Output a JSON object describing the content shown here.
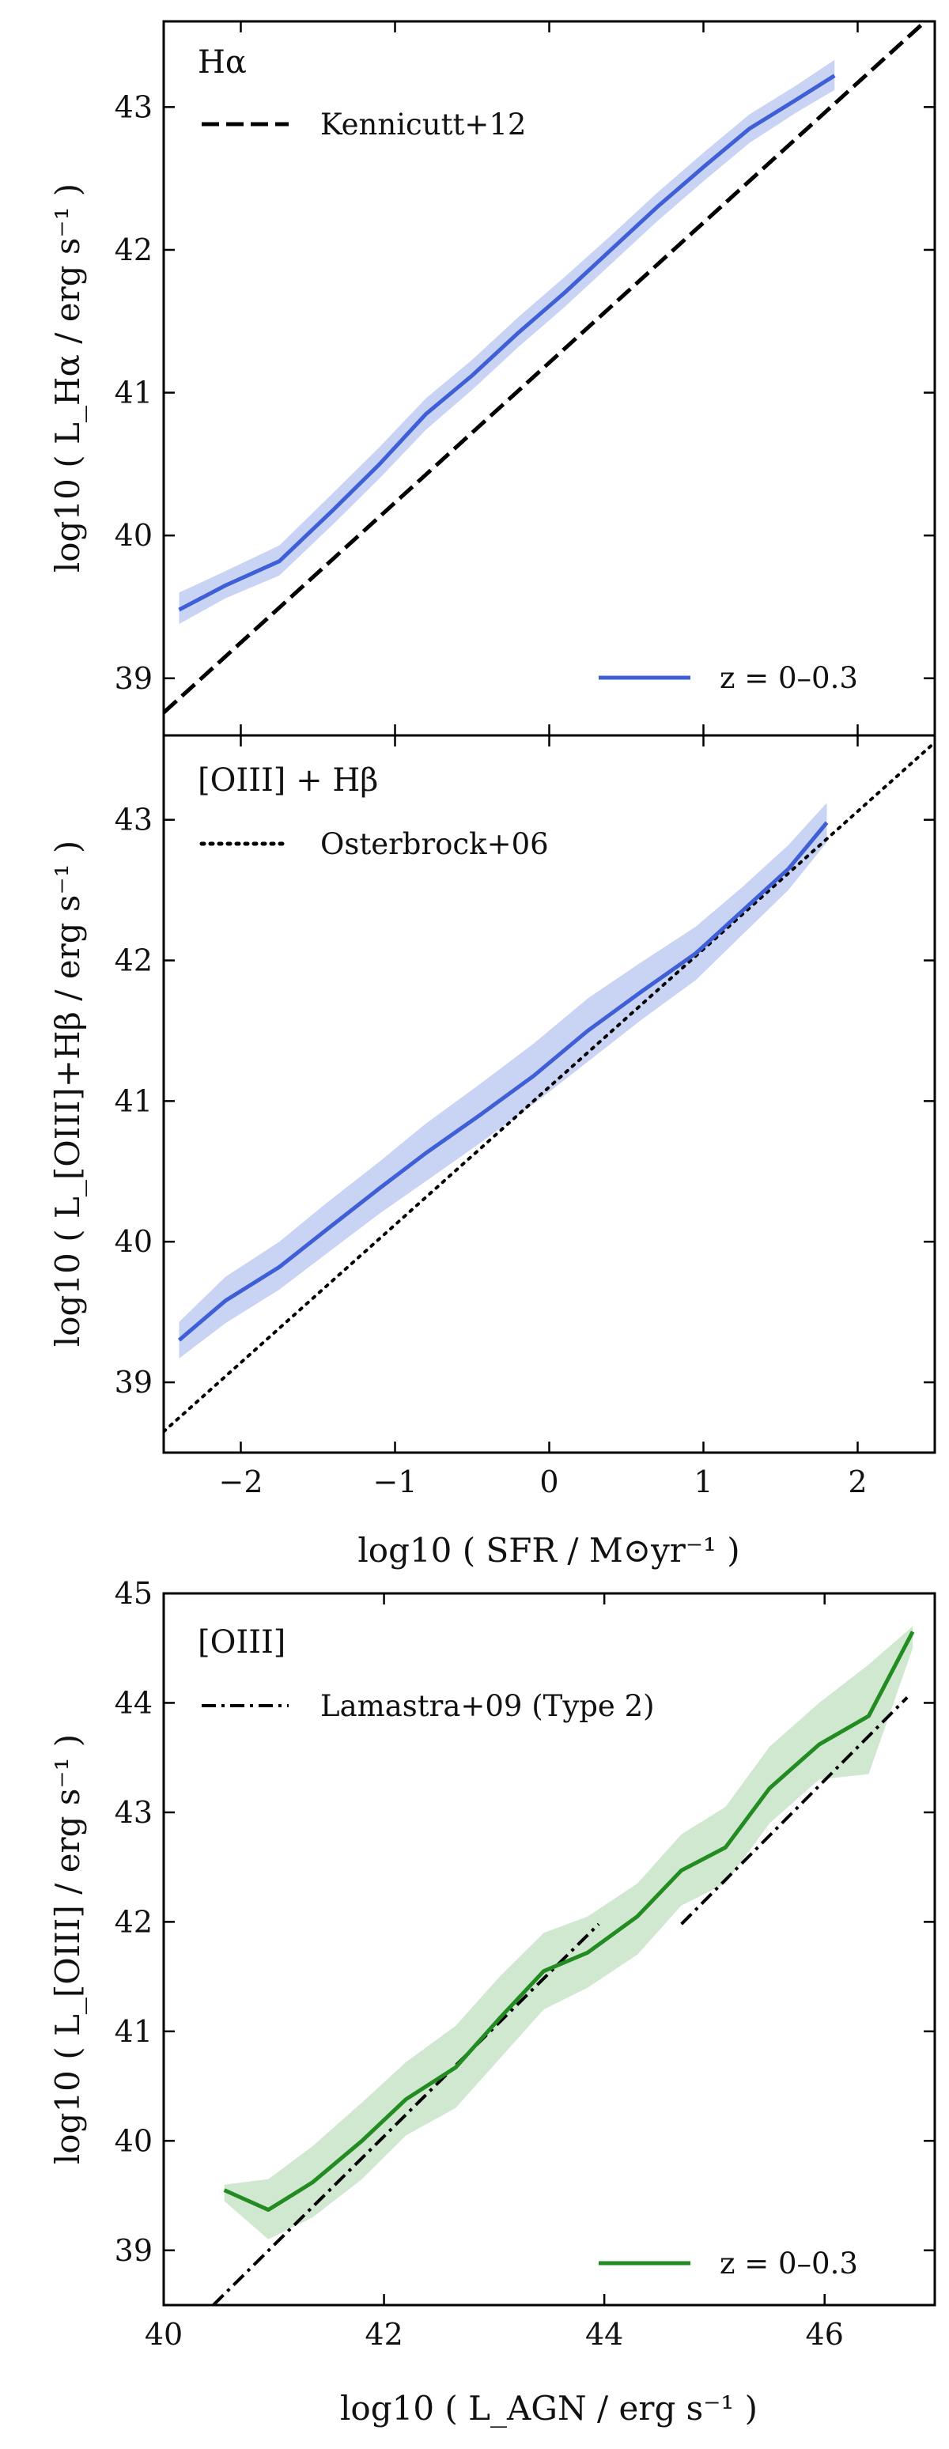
{
  "figure": {
    "shared_xlabel_sfr": "log10 ( SFR / M⊙yr⁻¹ )",
    "xlabel_agn": "log10 ( L_AGN / erg s⁻¹ )"
  },
  "colors": {
    "blue_line": "#3f5fd6",
    "blue_band": "#c9d3f3",
    "green_line": "#228b22",
    "green_band": "#cfe8cf",
    "reference": "#000000"
  },
  "chart_data": [
    {
      "type": "line",
      "panel_label": "Hα",
      "ylabel": "log10 ( L_Hα / erg s⁻¹ )",
      "xlabel": "",
      "xlim": [
        -2.5,
        2.5
      ],
      "ylim": [
        38.6,
        43.6
      ],
      "xticks": [
        -2,
        -1,
        0,
        1,
        2
      ],
      "yticks": [
        39,
        40,
        41,
        42,
        43
      ],
      "show_xtick_labels": false,
      "grid": false,
      "legend_top": {
        "name": "Kennicutt+12",
        "style": "dashed",
        "position": "top-left"
      },
      "legend_bottom": {
        "name": "z = 0–0.3",
        "style": "solid-blue",
        "position": "bottom-right"
      },
      "series": [
        {
          "name": "z = 0–0.3",
          "x": [
            -2.4,
            -2.1,
            -1.75,
            -1.4,
            -1.1,
            -0.8,
            -0.5,
            -0.2,
            0.1,
            0.4,
            0.7,
            1.0,
            1.3,
            1.6,
            1.85
          ],
          "y": [
            39.48,
            39.65,
            39.82,
            40.18,
            40.5,
            40.85,
            41.12,
            41.42,
            41.7,
            42.0,
            42.3,
            42.58,
            42.85,
            43.05,
            43.22
          ],
          "band_lo": [
            39.38,
            39.56,
            39.72,
            40.08,
            40.4,
            40.74,
            41.02,
            41.32,
            41.6,
            41.9,
            42.2,
            42.48,
            42.75,
            42.96,
            43.12
          ],
          "band_hi": [
            39.6,
            39.75,
            39.93,
            40.3,
            40.62,
            40.96,
            41.23,
            41.53,
            41.81,
            42.1,
            42.4,
            42.68,
            42.95,
            43.15,
            43.33
          ]
        },
        {
          "name": "Kennicutt+12",
          "style": "dashed",
          "x": [
            -2.5,
            2.5
          ],
          "y": [
            38.76,
            43.66
          ]
        }
      ]
    },
    {
      "type": "line",
      "panel_label": "[OIII] + Hβ",
      "ylabel": "log10 ( L_[OIII]+Hβ / erg s⁻¹ )",
      "xlabel": "log10 ( SFR / M⊙yr⁻¹ )",
      "xlim": [
        -2.5,
        2.5
      ],
      "ylim": [
        38.5,
        43.6
      ],
      "xticks": [
        -2,
        -1,
        0,
        1,
        2
      ],
      "xticklabels": [
        "−2",
        "−1",
        "0",
        "1",
        "2"
      ],
      "yticks": [
        39,
        40,
        41,
        42,
        43
      ],
      "show_xtick_labels": true,
      "grid": false,
      "legend_top": {
        "name": "Osterbrock+06",
        "style": "dotted",
        "position": "top-left"
      },
      "series": [
        {
          "name": "z = 0–0.3",
          "x": [
            -2.4,
            -2.1,
            -1.75,
            -1.45,
            -1.1,
            -0.8,
            -0.45,
            -0.1,
            0.25,
            0.6,
            0.95,
            1.25,
            1.55,
            1.8
          ],
          "y": [
            39.3,
            39.58,
            39.82,
            40.08,
            40.38,
            40.63,
            40.9,
            41.18,
            41.5,
            41.78,
            42.05,
            42.35,
            42.65,
            42.98
          ],
          "band_lo": [
            39.17,
            39.42,
            39.66,
            39.91,
            40.2,
            40.43,
            40.7,
            40.98,
            41.28,
            41.58,
            41.86,
            42.18,
            42.5,
            42.84
          ],
          "band_hi": [
            39.43,
            39.75,
            40.0,
            40.27,
            40.57,
            40.84,
            41.12,
            41.41,
            41.73,
            41.99,
            42.24,
            42.52,
            42.82,
            43.12
          ]
        },
        {
          "name": "Osterbrock+06",
          "style": "dotted",
          "x": [
            -2.5,
            2.5
          ],
          "y": [
            38.65,
            43.55
          ]
        }
      ]
    },
    {
      "type": "line",
      "panel_label": "[OIII]",
      "ylabel": "log10 ( L_[OIII] / erg s⁻¹ )",
      "xlabel": "log10 ( L_AGN / erg s⁻¹ )",
      "xlim": [
        40,
        47
      ],
      "ylim": [
        38.5,
        45
      ],
      "xticks": [
        40,
        42,
        44,
        46
      ],
      "xticklabels": [
        "40",
        "42",
        "44",
        "46"
      ],
      "yticks": [
        39,
        40,
        41,
        42,
        43,
        44,
        45
      ],
      "show_xtick_labels": true,
      "grid": false,
      "legend_top": {
        "name": "Lamastra+09 (Type 2)",
        "style": "dashdot",
        "position": "top-left"
      },
      "legend_bottom": {
        "name": "z = 0–0.3",
        "style": "solid-green",
        "position": "bottom-right"
      },
      "series": [
        {
          "name": "z = 0–0.3",
          "x": [
            40.55,
            40.95,
            41.35,
            41.8,
            42.2,
            42.65,
            43.05,
            43.45,
            43.85,
            44.3,
            44.7,
            45.1,
            45.5,
            45.95,
            46.4,
            46.8
          ],
          "y": [
            39.55,
            39.37,
            39.62,
            40.0,
            40.38,
            40.67,
            41.12,
            41.55,
            41.72,
            42.05,
            42.47,
            42.68,
            43.22,
            43.62,
            43.88,
            44.65
          ],
          "band_lo": [
            39.45,
            39.1,
            39.3,
            39.65,
            40.05,
            40.3,
            40.75,
            41.2,
            41.4,
            41.7,
            42.15,
            42.35,
            42.9,
            43.3,
            43.35,
            44.5
          ],
          "band_hi": [
            39.6,
            39.65,
            39.95,
            40.35,
            40.72,
            41.05,
            41.5,
            41.9,
            42.05,
            42.35,
            42.8,
            43.05,
            43.6,
            44.0,
            44.35,
            44.7
          ]
        },
        {
          "name": "Lamastra+09 (Type 2)",
          "style": "dashdot",
          "segments": [
            {
              "x": [
                40.45,
                43.95
              ],
              "y": [
                38.5,
                41.98
              ]
            },
            {
              "x": [
                44.7,
                46.75
              ],
              "y": [
                41.98,
                44.05
              ]
            }
          ]
        }
      ]
    }
  ]
}
